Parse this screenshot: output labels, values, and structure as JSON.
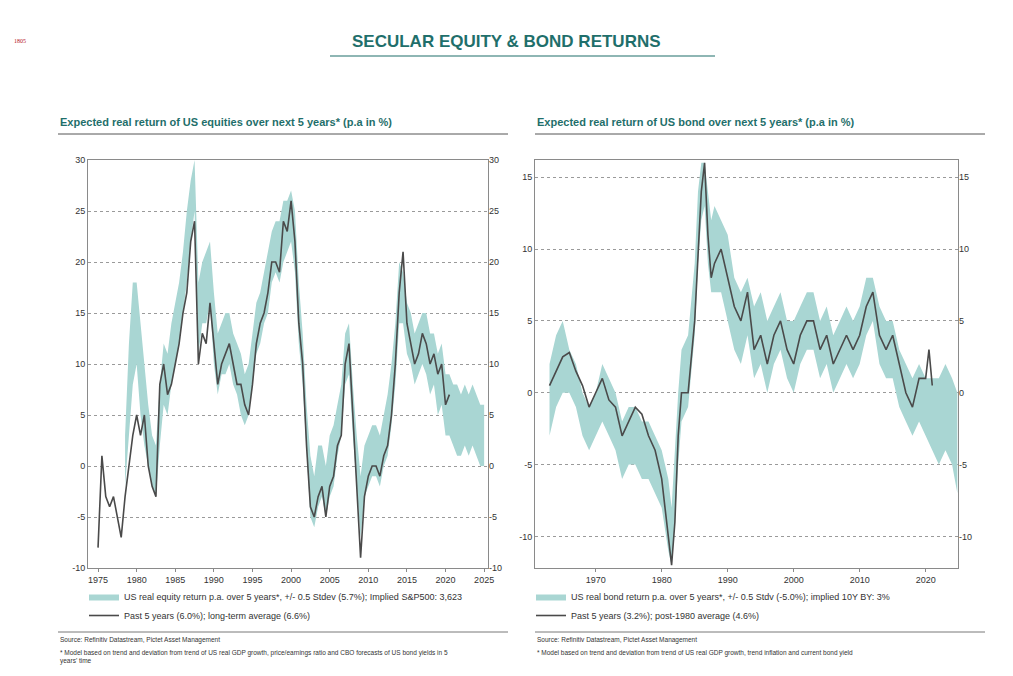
{
  "page": {
    "title": "SECULAR EQUITY & BOND RETURNS",
    "logo_text": "1805",
    "title_color": "#1f6f6b"
  },
  "chart_data": [
    {
      "type": "line",
      "title": "Expected real return of US equities over next 5 years* (p.a in %)",
      "source": "Source: Refinitiv Datastream, Pictet Asset Management",
      "footnote": [
        "* Model based on trend and deviation from trend of US real GDP growth, price/earnings ratio and CBO forecasts of US bond yields in 5",
        "years' time"
      ],
      "xlim": [
        1973.7,
        2025.5
      ],
      "xticks": [
        1975,
        1980,
        1985,
        1990,
        1995,
        2000,
        2005,
        2010,
        2015,
        2020,
        2025
      ],
      "ylim": [
        -10,
        30
      ],
      "yticks": [
        -10,
        -5,
        0,
        5,
        10,
        15,
        20,
        25,
        30
      ],
      "y2lim": [
        -10,
        30
      ],
      "y2ticks": [
        -10,
        -5,
        0,
        5,
        10,
        15,
        20,
        25,
        30
      ],
      "grid": true,
      "legend": "bottom",
      "series": [
        {
          "name": "US real equity return p.a. over 5 years*, +/- 0.5 Stdev (5.7%); Implied S&P500: 3,623",
          "type": "band",
          "color": "#a9d6d3",
          "x": [
            1978.5,
            1979,
            1979.5,
            1980,
            1980.5,
            1981,
            1981.5,
            1982,
            1982.5,
            1983,
            1983.5,
            1984,
            1984.5,
            1985,
            1985.5,
            1986,
            1986.5,
            1987,
            1987.5,
            1988,
            1988.5,
            1989,
            1989.5,
            1990,
            1990.5,
            1991,
            1991.5,
            1992,
            1992.5,
            1993,
            1993.5,
            1994,
            1994.5,
            1995,
            1995.5,
            1996,
            1996.5,
            1997,
            1997.5,
            1998,
            1998.5,
            1999,
            1999.5,
            2000,
            2000.5,
            2001,
            2001.5,
            2002,
            2002.5,
            2003,
            2003.5,
            2004,
            2004.5,
            2005,
            2005.5,
            2006,
            2006.5,
            2007,
            2007.5,
            2008,
            2008.5,
            2009,
            2009.5,
            2010,
            2010.5,
            2011,
            2011.5,
            2012,
            2012.5,
            2013,
            2013.5,
            2014,
            2014.5,
            2015,
            2015.5,
            2016,
            2016.5,
            2017,
            2017.5,
            2018,
            2018.5,
            2019,
            2019.5,
            2020,
            2020.5,
            2021,
            2021.5,
            2022,
            2022.5,
            2023,
            2023.5,
            2024,
            2024.5,
            2025
          ],
          "lower": [
            -2,
            3,
            8,
            10,
            5,
            2,
            0,
            -2,
            -3,
            2,
            6,
            5,
            8,
            10,
            12,
            15,
            18,
            22,
            25,
            11,
            14,
            14,
            16,
            10,
            7,
            9,
            9,
            10,
            8,
            7,
            5,
            4,
            5,
            8,
            11,
            12,
            14,
            15,
            18,
            19,
            18,
            20,
            21,
            22,
            19,
            12,
            8,
            1,
            -5,
            -6,
            -4,
            -3,
            -5,
            -3,
            -2,
            1,
            3,
            8,
            9,
            3,
            -2,
            -7,
            -3,
            -2,
            -1,
            -1,
            -2,
            0,
            1,
            4,
            8,
            14,
            14,
            11,
            10,
            8,
            9,
            10,
            9,
            7,
            8,
            5,
            6,
            3,
            3,
            2,
            1,
            1,
            2,
            1,
            2,
            1,
            0,
            0
          ],
          "upper": [
            3,
            12,
            18,
            18,
            14,
            10,
            6,
            3,
            2,
            8,
            12,
            11,
            14,
            16,
            18,
            21,
            25,
            28,
            30,
            18,
            20,
            21,
            22,
            17,
            13,
            14,
            15,
            15,
            13,
            12,
            11,
            9,
            10,
            13,
            16,
            17,
            19,
            21,
            23,
            24,
            24,
            26,
            26,
            27,
            25,
            18,
            13,
            6,
            1,
            -1,
            2,
            2,
            0,
            3,
            4,
            6,
            8,
            13,
            14,
            8,
            3,
            -1,
            2,
            3,
            4,
            4,
            3,
            5,
            7,
            10,
            14,
            20,
            19,
            16,
            15,
            13,
            14,
            15,
            15,
            13,
            13,
            11,
            12,
            9,
            9,
            8,
            8,
            7,
            8,
            7,
            8,
            7,
            6,
            6
          ]
        },
        {
          "name": "Past 5 years (6.0%); long-term average (6.6%)",
          "type": "line",
          "color": "#4a4a4a",
          "line_style": "solid",
          "x": [
            1975,
            1975.5,
            1976,
            1976.5,
            1977,
            1977.5,
            1978,
            1978.5,
            1979,
            1979.5,
            1980,
            1980.5,
            1981,
            1981.5,
            1982,
            1982.5,
            1983,
            1983.5,
            1984,
            1984.5,
            1985,
            1985.5,
            1986,
            1986.5,
            1987,
            1987.5,
            1988,
            1988.5,
            1989,
            1989.5,
            1990,
            1990.5,
            1991,
            1991.5,
            1992,
            1992.5,
            1993,
            1993.5,
            1994,
            1994.5,
            1995,
            1995.5,
            1996,
            1996.5,
            1997,
            1997.5,
            1998,
            1998.5,
            1999,
            1999.5,
            2000,
            2000.5,
            2001,
            2001.5,
            2002,
            2002.5,
            2003,
            2003.5,
            2004,
            2004.5,
            2005,
            2005.5,
            2006,
            2006.5,
            2007,
            2007.5,
            2008,
            2008.5,
            2009,
            2009.5,
            2010,
            2010.5,
            2011,
            2011.5,
            2012,
            2012.5,
            2013,
            2013.5,
            2014,
            2014.5,
            2015,
            2015.5,
            2016,
            2016.5,
            2017,
            2017.5,
            2018,
            2018.5,
            2019,
            2019.5,
            2020,
            2020.5
          ],
          "values": [
            -8,
            1,
            -3,
            -4,
            -3,
            -5,
            -7,
            -3,
            0,
            3,
            5,
            3,
            5,
            0,
            -2,
            -3,
            8,
            10,
            7,
            8,
            10,
            12,
            15,
            17,
            22,
            24,
            10,
            13,
            12,
            16,
            12,
            8,
            10,
            11,
            12,
            10,
            8,
            8,
            6,
            5,
            8,
            12,
            14,
            15,
            17,
            20,
            20,
            19,
            24,
            23,
            26,
            22,
            14,
            10,
            2,
            -4,
            -5,
            -3,
            -2,
            -5,
            -2,
            -1,
            2,
            3,
            10,
            12,
            5,
            -2,
            -9,
            -3,
            -1,
            0,
            0,
            -1,
            1,
            2,
            5,
            10,
            17,
            21,
            14,
            12,
            10,
            11,
            13,
            12,
            10,
            11,
            9,
            10,
            6,
            7
          ]
        }
      ]
    },
    {
      "type": "line",
      "title": "Expected real return of US bond over next 5 years* (p.a in %)",
      "source": "Source: Refinitiv Datastream, Pictet Asset Management",
      "footnote": [
        "* Model based on trend and deviation from trend of US real GDP growth, trend inflation and current bond yield"
      ],
      "xlim": [
        1960.8,
        2024.9
      ],
      "xticks": [
        1970,
        1980,
        1990,
        2000,
        2010,
        2020
      ],
      "ylim": [
        -12.2,
        16.2
      ],
      "yticks": [
        -10,
        -5,
        0,
        5,
        10,
        15
      ],
      "y2lim": [
        -12.2,
        16.2
      ],
      "y2ticks": [
        -10,
        -5,
        0,
        5,
        10,
        15
      ],
      "grid": true,
      "legend": "bottom",
      "series": [
        {
          "name": "US real bond return p.a. over 5 years*, +/- 0.5 Stdv (-5.0%); implied 10Y BY: 3%",
          "type": "band",
          "color": "#a9d6d3",
          "x": [
            1963,
            1964,
            1965,
            1966,
            1967,
            1968,
            1969,
            1970,
            1971,
            1972,
            1973,
            1974,
            1975,
            1976,
            1977,
            1978,
            1979,
            1980,
            1981,
            1981.5,
            1982,
            1982.5,
            1983,
            1984,
            1985,
            1985.5,
            1986,
            1986.5,
            1987,
            1987.5,
            1988,
            1989,
            1990,
            1991,
            1992,
            1993,
            1994,
            1995,
            1996,
            1997,
            1998,
            1999,
            2000,
            2001,
            2002,
            2003,
            2004,
            2005,
            2006,
            2007,
            2008,
            2009,
            2010,
            2011,
            2012,
            2013,
            2014,
            2015,
            2016,
            2017,
            2018,
            2019,
            2020,
            2021,
            2022,
            2023,
            2024,
            2024.8
          ],
          "lower": [
            -3,
            -1,
            0,
            0,
            -1,
            -3,
            -4,
            -3,
            -2,
            -3,
            -4,
            -6,
            -5,
            -5,
            -6,
            -6,
            -7,
            -8,
            -11,
            -12,
            -9,
            -5,
            -2,
            -1,
            4,
            9,
            12,
            13,
            9,
            7,
            7,
            7,
            5,
            3,
            2,
            4,
            1,
            2,
            0,
            2,
            3,
            1,
            0,
            2,
            3,
            3,
            1,
            2,
            0,
            1,
            2,
            1,
            2,
            4,
            5,
            2,
            1,
            1,
            -1,
            -2,
            -3,
            -2,
            -3,
            -4,
            -5,
            -4,
            -5,
            -7
          ],
          "upper": [
            2,
            4,
            5,
            3,
            2,
            0,
            -1,
            0,
            2,
            1,
            0,
            -2,
            -1,
            -1,
            -2,
            -2,
            -3,
            -4,
            -6,
            -8,
            -4,
            0,
            3,
            4,
            9,
            14,
            16,
            16,
            14,
            12,
            13,
            12,
            11,
            8,
            7,
            8,
            6,
            7,
            5,
            6,
            7,
            5,
            5,
            6,
            7,
            7,
            5,
            6,
            4,
            5,
            6,
            5,
            6,
            8,
            8,
            6,
            5,
            5,
            3,
            2,
            1,
            2,
            1,
            1,
            1,
            2,
            1,
            0
          ]
        },
        {
          "name": "Past 5 years (3.2%); post-1980 average (4.6%)",
          "type": "line",
          "color": "#4a4a4a",
          "line_style": "solid",
          "x": [
            1963,
            1964,
            1965,
            1966,
            1967,
            1968,
            1969,
            1970,
            1971,
            1972,
            1973,
            1974,
            1975,
            1976,
            1977,
            1978,
            1979,
            1980,
            1981,
            1981.5,
            1982,
            1982.5,
            1983,
            1984,
            1985,
            1985.5,
            1986,
            1986.5,
            1987,
            1987.5,
            1988,
            1989,
            1990,
            1991,
            1992,
            1993,
            1994,
            1995,
            1996,
            1997,
            1998,
            1999,
            2000,
            2001,
            2002,
            2003,
            2004,
            2005,
            2006,
            2007,
            2008,
            2009,
            2010,
            2011,
            2012,
            2013,
            2014,
            2015,
            2016,
            2017,
            2018,
            2019,
            2020,
            2020.5,
            2021
          ],
          "values": [
            0.5,
            1.5,
            2.5,
            2.8,
            1.5,
            0.5,
            -1,
            0,
            1,
            -0.5,
            -1,
            -3,
            -2,
            -1,
            -1.5,
            -3,
            -4,
            -6,
            -10,
            -12,
            -9,
            -3,
            0,
            0,
            5,
            10,
            14,
            16,
            11,
            8,
            9,
            10,
            8,
            6,
            5,
            7,
            3,
            4,
            2,
            4,
            5,
            3,
            2,
            4,
            5,
            5,
            3,
            4,
            2,
            3,
            4,
            3,
            4,
            6,
            7,
            4,
            3,
            4,
            2,
            0,
            -1,
            1,
            1,
            3,
            0.5
          ]
        }
      ]
    }
  ]
}
